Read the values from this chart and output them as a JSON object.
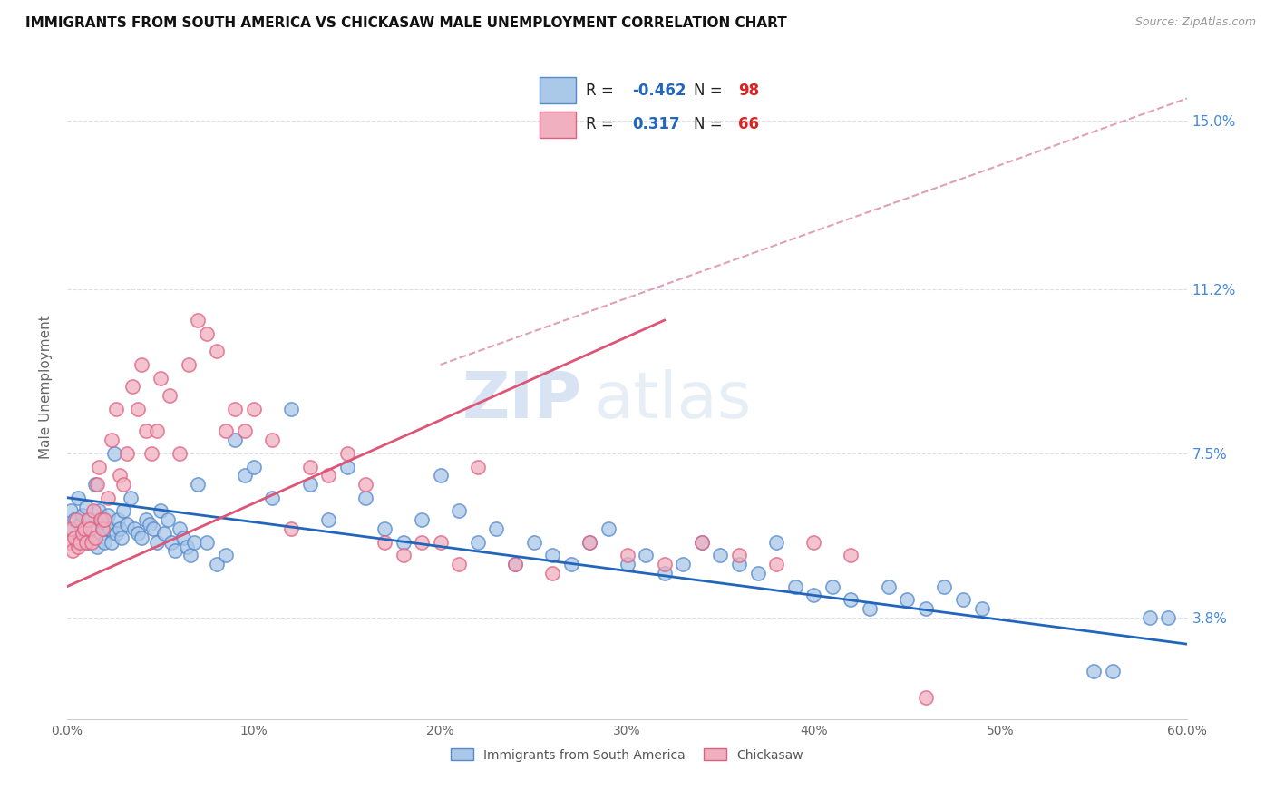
{
  "title": "IMMIGRANTS FROM SOUTH AMERICA VS CHICKASAW MALE UNEMPLOYMENT CORRELATION CHART",
  "source": "Source: ZipAtlas.com",
  "ylabel": "Male Unemployment",
  "yticks": [
    3.8,
    7.5,
    11.2,
    15.0
  ],
  "ytick_labels": [
    "3.8%",
    "7.5%",
    "11.2%",
    "15.0%"
  ],
  "xmin": 0.0,
  "xmax": 0.6,
  "ymin": 1.5,
  "ymax": 16.5,
  "blue_R": -0.462,
  "blue_N": 98,
  "pink_R": 0.317,
  "pink_N": 66,
  "blue_color": "#aac8e8",
  "pink_color": "#f0b0c0",
  "blue_edge_color": "#5588cc",
  "pink_edge_color": "#e06080",
  "blue_line_color": "#2266bb",
  "pink_line_color": "#dd5577",
  "dashed_line_color": "#e0a0b8",
  "watermark_zip": "ZIP",
  "watermark_atlas": "atlas",
  "legend_R_color": "#2266bb",
  "legend_N_color": "#dd2222",
  "blue_scatter_x": [
    0.002,
    0.003,
    0.004,
    0.005,
    0.006,
    0.007,
    0.008,
    0.009,
    0.01,
    0.011,
    0.012,
    0.013,
    0.014,
    0.015,
    0.016,
    0.017,
    0.018,
    0.019,
    0.02,
    0.021,
    0.022,
    0.023,
    0.024,
    0.025,
    0.026,
    0.027,
    0.028,
    0.029,
    0.03,
    0.032,
    0.034,
    0.036,
    0.038,
    0.04,
    0.042,
    0.044,
    0.046,
    0.048,
    0.05,
    0.052,
    0.054,
    0.056,
    0.058,
    0.06,
    0.062,
    0.064,
    0.066,
    0.068,
    0.07,
    0.075,
    0.08,
    0.085,
    0.09,
    0.095,
    0.1,
    0.11,
    0.12,
    0.13,
    0.14,
    0.15,
    0.16,
    0.17,
    0.18,
    0.19,
    0.2,
    0.21,
    0.22,
    0.23,
    0.24,
    0.25,
    0.26,
    0.27,
    0.28,
    0.29,
    0.3,
    0.31,
    0.32,
    0.33,
    0.34,
    0.35,
    0.36,
    0.37,
    0.38,
    0.39,
    0.4,
    0.41,
    0.42,
    0.43,
    0.44,
    0.45,
    0.46,
    0.47,
    0.48,
    0.49,
    0.55,
    0.56,
    0.58,
    0.59
  ],
  "blue_scatter_y": [
    6.2,
    5.8,
    6.0,
    5.5,
    6.5,
    5.9,
    6.1,
    5.7,
    6.3,
    5.5,
    6.0,
    5.8,
    5.6,
    6.8,
    5.4,
    6.2,
    5.7,
    6.0,
    5.5,
    5.9,
    6.1,
    5.8,
    5.5,
    7.5,
    5.7,
    6.0,
    5.8,
    5.6,
    6.2,
    5.9,
    6.5,
    5.8,
    5.7,
    5.6,
    6.0,
    5.9,
    5.8,
    5.5,
    6.2,
    5.7,
    6.0,
    5.5,
    5.3,
    5.8,
    5.6,
    5.4,
    5.2,
    5.5,
    6.8,
    5.5,
    5.0,
    5.2,
    7.8,
    7.0,
    7.2,
    6.5,
    8.5,
    6.8,
    6.0,
    7.2,
    6.5,
    5.8,
    5.5,
    6.0,
    7.0,
    6.2,
    5.5,
    5.8,
    5.0,
    5.5,
    5.2,
    5.0,
    5.5,
    5.8,
    5.0,
    5.2,
    4.8,
    5.0,
    5.5,
    5.2,
    5.0,
    4.8,
    5.5,
    4.5,
    4.3,
    4.5,
    4.2,
    4.0,
    4.5,
    4.2,
    4.0,
    4.5,
    4.2,
    4.0,
    2.6,
    2.6,
    3.8,
    3.8
  ],
  "pink_scatter_x": [
    0.001,
    0.002,
    0.003,
    0.004,
    0.005,
    0.006,
    0.007,
    0.008,
    0.009,
    0.01,
    0.011,
    0.012,
    0.013,
    0.014,
    0.015,
    0.016,
    0.017,
    0.018,
    0.019,
    0.02,
    0.022,
    0.024,
    0.026,
    0.028,
    0.03,
    0.032,
    0.035,
    0.038,
    0.04,
    0.042,
    0.045,
    0.048,
    0.05,
    0.055,
    0.06,
    0.065,
    0.07,
    0.075,
    0.08,
    0.085,
    0.09,
    0.095,
    0.1,
    0.11,
    0.12,
    0.13,
    0.14,
    0.15,
    0.16,
    0.17,
    0.18,
    0.19,
    0.2,
    0.21,
    0.22,
    0.24,
    0.26,
    0.28,
    0.3,
    0.32,
    0.34,
    0.36,
    0.38,
    0.4,
    0.42,
    0.46
  ],
  "pink_scatter_y": [
    5.5,
    5.8,
    5.3,
    5.6,
    6.0,
    5.4,
    5.5,
    5.7,
    5.8,
    5.5,
    6.0,
    5.8,
    5.5,
    6.2,
    5.6,
    6.8,
    7.2,
    6.0,
    5.8,
    6.0,
    6.5,
    7.8,
    8.5,
    7.0,
    6.8,
    7.5,
    9.0,
    8.5,
    9.5,
    8.0,
    7.5,
    8.0,
    9.2,
    8.8,
    7.5,
    9.5,
    10.5,
    10.2,
    9.8,
    8.0,
    8.5,
    8.0,
    8.5,
    7.8,
    5.8,
    7.2,
    7.0,
    7.5,
    6.8,
    5.5,
    5.2,
    5.5,
    5.5,
    5.0,
    7.2,
    5.0,
    4.8,
    5.5,
    5.2,
    5.0,
    5.5,
    5.2,
    5.0,
    5.5,
    5.2,
    2.0
  ],
  "blue_line_x": [
    0.0,
    0.6
  ],
  "blue_line_y": [
    6.5,
    3.2
  ],
  "pink_line_x": [
    0.0,
    0.32
  ],
  "pink_line_y": [
    4.5,
    10.5
  ],
  "dash_line_x": [
    0.2,
    0.6
  ],
  "dash_line_y": [
    9.5,
    15.5
  ],
  "xtick_positions": [
    0.0,
    0.1,
    0.2,
    0.3,
    0.4,
    0.5,
    0.6
  ],
  "xtick_labels": [
    "0.0%",
    "10%",
    "20%",
    "30%",
    "40%",
    "50%",
    "60.0%"
  ]
}
